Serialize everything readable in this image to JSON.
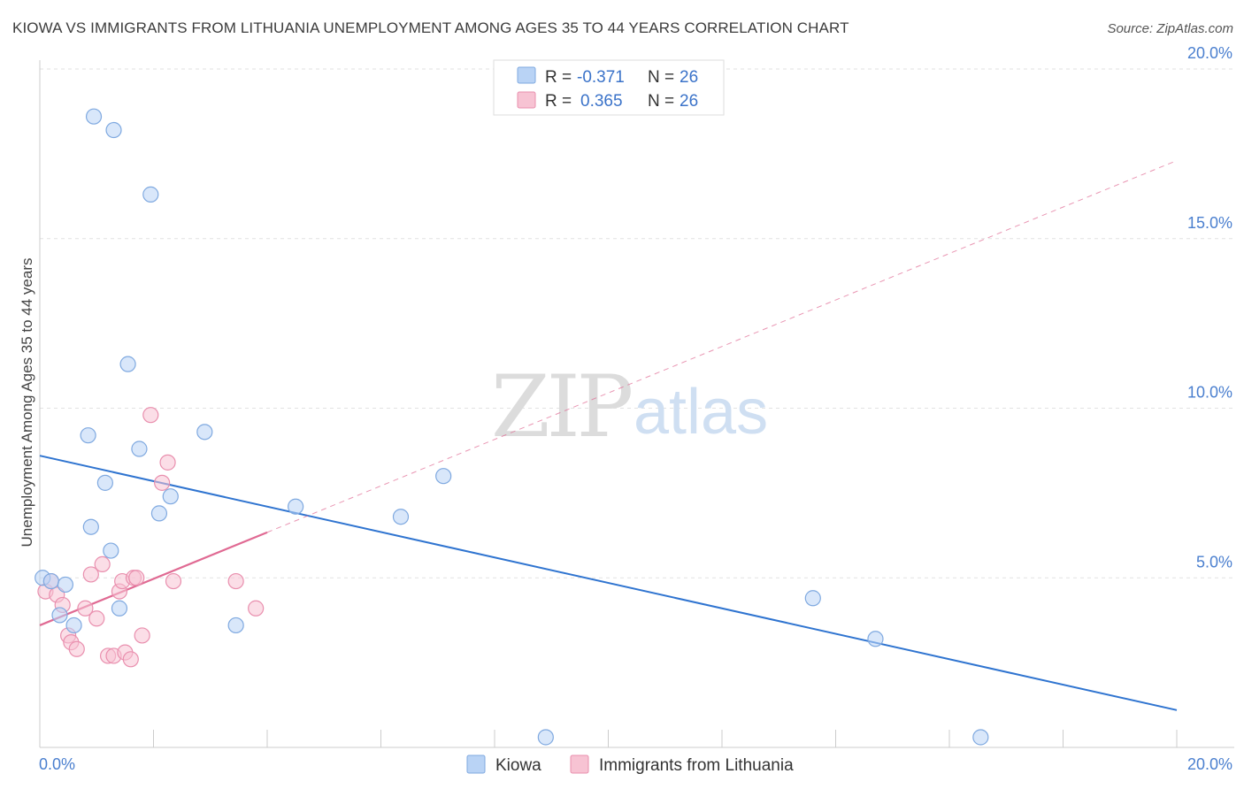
{
  "title": "KIOWA VS IMMIGRANTS FROM LITHUANIA UNEMPLOYMENT AMONG AGES 35 TO 44 YEARS CORRELATION CHART",
  "source": "Source: ZipAtlas.com",
  "watermark": {
    "zip": "ZIP",
    "atlas": "atlas"
  },
  "colors": {
    "kiowa_fill": "#b9d3f5",
    "kiowa_stroke": "#7fa9e0",
    "kiowa_line": "#2f74d0",
    "lith_fill": "#f7c3d3",
    "lith_stroke": "#e98fae",
    "lith_line": "#e06a93",
    "grid": "#e2e2e2",
    "axis": "#cccccc",
    "tick_label": "#4a7fcf"
  },
  "legend": {
    "items": [
      {
        "r_label": "R =",
        "r_value": "-0.371",
        "n_label": "N =",
        "n_value": "26"
      },
      {
        "r_label": "R =",
        "r_value": "0.365",
        "n_label": "N =",
        "n_value": "26"
      }
    ]
  },
  "bottom_legend": [
    "Kiowa",
    "Immigrants from Lithuania"
  ],
  "chart_data": {
    "type": "scatter",
    "title": "KIOWA VS IMMIGRANTS FROM LITHUANIA UNEMPLOYMENT AMONG AGES 35 TO 44 YEARS CORRELATION CHART",
    "xlabel": "",
    "ylabel": "Unemployment Among Ages 35 to 44 years",
    "xlim": [
      0,
      20
    ],
    "ylim": [
      0,
      20
    ],
    "x_tick_labels": [
      "0.0%",
      "20.0%"
    ],
    "y_ticks": [
      5,
      10,
      15,
      20
    ],
    "y_tick_labels": [
      "5.0%",
      "10.0%",
      "15.0%",
      "20.0%"
    ],
    "series": [
      {
        "name": "Kiowa",
        "x": [
          0.05,
          0.2,
          0.35,
          0.45,
          0.6,
          0.85,
          1.15,
          0.9,
          1.3,
          1.55,
          1.4,
          1.75,
          1.95,
          2.1,
          2.3,
          2.9,
          3.45,
          4.5,
          6.35,
          7.1,
          8.9,
          13.6,
          14.7,
          16.55,
          1.25,
          0.95
        ],
        "y": [
          5.0,
          4.9,
          3.9,
          4.8,
          3.6,
          9.2,
          7.8,
          6.5,
          18.2,
          11.3,
          4.1,
          8.8,
          16.3,
          6.9,
          7.4,
          9.3,
          3.6,
          7.1,
          6.8,
          8.0,
          0.3,
          4.4,
          3.2,
          0.3,
          5.8,
          18.6
        ],
        "trend": {
          "x": [
            0,
            20
          ],
          "y": [
            8.6,
            1.1
          ],
          "style": "solid"
        }
      },
      {
        "name": "Immigrants from Lithuania",
        "x": [
          0.1,
          0.2,
          0.3,
          0.4,
          0.5,
          0.55,
          0.65,
          0.8,
          0.9,
          1.0,
          1.1,
          1.2,
          1.3,
          1.4,
          1.45,
          1.5,
          1.6,
          1.65,
          1.7,
          1.8,
          1.95,
          2.15,
          2.25,
          2.35,
          3.45,
          3.8
        ],
        "y": [
          4.6,
          4.9,
          4.5,
          4.2,
          3.3,
          3.1,
          2.9,
          4.1,
          5.1,
          3.8,
          5.4,
          2.7,
          2.7,
          4.6,
          4.9,
          2.8,
          2.6,
          5.0,
          5.0,
          3.3,
          9.8,
          7.8,
          8.4,
          4.9,
          4.9,
          4.1
        ],
        "trend": {
          "x": [
            0,
            20
          ],
          "y": [
            3.6,
            17.3
          ],
          "style": "solid to x=4, dashed beyond"
        }
      }
    ]
  }
}
